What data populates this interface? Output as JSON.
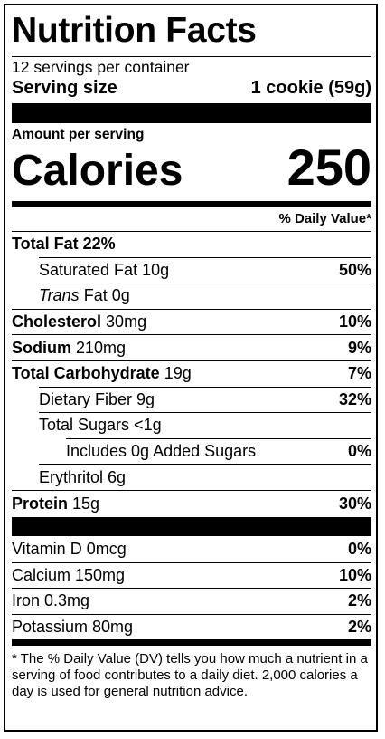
{
  "title": "Nutrition Facts",
  "servings": "12 servings per container",
  "serving_size_label": "Serving size",
  "serving_size": "1 cookie (59g)",
  "amount_per_serving": "Amount per serving",
  "calories_label": "Calories",
  "calories": "250",
  "dv_header": "% Daily Value*",
  "nutrients": [
    {
      "name": "Total Fat 22%"
    },
    {
      "name": "Saturated Fat 10g",
      "dv": "50%"
    },
    {
      "name": "Trans",
      "amount": "Fat 0g"
    },
    {
      "name": "Cholesterol",
      "amount": "30mg",
      "dv": "10%"
    },
    {
      "name": "Sodium",
      "amount": "210mg",
      "dv": "9%"
    },
    {
      "name": "Total Carbohydrate",
      "amount": "19g",
      "dv": "7%"
    },
    {
      "name": "Dietary Fiber 9g",
      "dv": "32%"
    },
    {
      "name": "Total Sugars <1g"
    },
    {
      "name": "Includes 0g Added Sugars",
      "dv": "0%"
    },
    {
      "name": "Erythritol 6g"
    },
    {
      "name": "Protein",
      "amount": "15g",
      "dv": "30%"
    }
  ],
  "vitamins": [
    {
      "name": "Vitamin D 0mcg",
      "dv": "0%"
    },
    {
      "name": "Calcium 150mg",
      "dv": "10%"
    },
    {
      "name": "Iron 0.3mg",
      "dv": "2%"
    },
    {
      "name": "Potassium 80mg",
      "dv": "2%"
    }
  ],
  "footnote": "* The % Daily Value (DV) tells you how much a nutrient in a serving of food contributes to a daily diet. 2,000 calories a day is used for general nutrition advice."
}
